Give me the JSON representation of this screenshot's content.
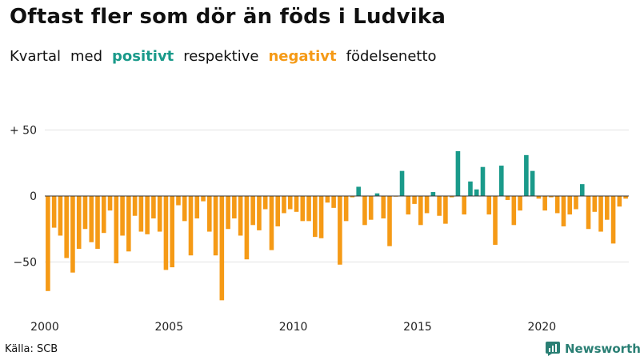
{
  "title": "Oftast fler som dör än föds i Ludvika",
  "subtitle": {
    "prefix1": "Kvartal",
    "prefix2": "med",
    "positive": "positivt",
    "middle": "respektive",
    "negative": "negativt",
    "suffix": "födelsenetto"
  },
  "colors": {
    "positive": "#1a9a8a",
    "negative": "#f59a16",
    "brand": "#2a7f74"
  },
  "source": "Källa: SCB",
  "brand": {
    "name": "Newsworthy",
    "icon": "bar-chart-logo-icon"
  },
  "chart_data": {
    "type": "bar",
    "title": "Oftast fler som dör än föds i Ludvika",
    "subtitle": "Kvartal med positivt respektive negativt födelsenetto",
    "xlabel": "",
    "ylabel": "",
    "ylim": [
      -82,
      62
    ],
    "grid": true,
    "y_ticks": [
      {
        "value": 50,
        "label": "+ 50"
      },
      {
        "value": 0,
        "label": "0"
      },
      {
        "value": -50,
        "label": "−50"
      }
    ],
    "x_ticks": [
      {
        "value": 2000,
        "label": "2000"
      },
      {
        "value": 2005,
        "label": "2005"
      },
      {
        "value": 2010,
        "label": "2010"
      },
      {
        "value": 2015,
        "label": "2015"
      },
      {
        "value": 2020,
        "label": "2020"
      }
    ],
    "start_year": 2000,
    "quarters_per_year": 4,
    "values": [
      -72,
      -24,
      -30,
      -47,
      -58,
      -40,
      -25,
      -35,
      -40,
      -28,
      -11,
      -51,
      -30,
      -42,
      -15,
      -27,
      -29,
      -17,
      -27,
      -56,
      -54,
      -7,
      -19,
      -45,
      -17,
      -4,
      -27,
      -45,
      -79,
      -25,
      -17,
      -30,
      -48,
      -22,
      -26,
      -10,
      -41,
      -23,
      -13,
      -10,
      -12,
      -19,
      -19,
      -31,
      -32,
      -5,
      -9,
      -52,
      -19,
      -1,
      7,
      -22,
      -18,
      2,
      -17,
      -38,
      0,
      19,
      -14,
      -6,
      -22,
      -13,
      3,
      -15,
      -21,
      -1,
      34,
      -14,
      11,
      5,
      22,
      -14,
      -37,
      23,
      -3,
      -22,
      -11,
      31,
      19,
      -2,
      -11,
      -1,
      -13,
      -23,
      -14,
      -10,
      9,
      -25,
      -12,
      -27,
      -18,
      -36,
      -8,
      -2
    ]
  }
}
